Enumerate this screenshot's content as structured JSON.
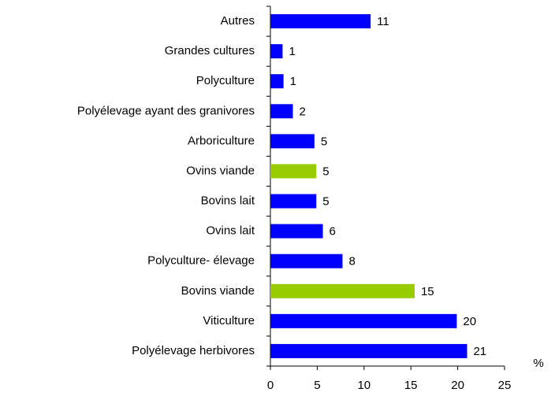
{
  "chart_data": {
    "type": "bar",
    "orientation": "horizontal",
    "categories": [
      "Autres",
      "Grandes cultures",
      "Polyculture",
      "Polyélevage ayant des granivores",
      "Arboriculture",
      "Ovins viande",
      "Bovins lait",
      "Ovins lait",
      "Polyculture- élevage",
      "Bovins viande",
      "Viticulture",
      "Polyélevage herbivores"
    ],
    "values": [
      10.7,
      1.3,
      1.4,
      2.4,
      4.7,
      4.9,
      4.9,
      5.6,
      7.7,
      15.4,
      19.9,
      21.0
    ],
    "value_labels": [
      "11",
      "1",
      "1",
      "2",
      "5",
      "5",
      "5",
      "6",
      "8",
      "15",
      "20",
      "21"
    ],
    "colors": [
      "#0000ff",
      "#0000ff",
      "#0000ff",
      "#0000ff",
      "#0000ff",
      "#99cc00",
      "#0000ff",
      "#0000ff",
      "#0000ff",
      "#99cc00",
      "#0000ff",
      "#0000ff"
    ],
    "xlim": [
      0,
      25
    ],
    "xticks": [
      0,
      5,
      10,
      15,
      20,
      25
    ],
    "xlabel": "%"
  }
}
